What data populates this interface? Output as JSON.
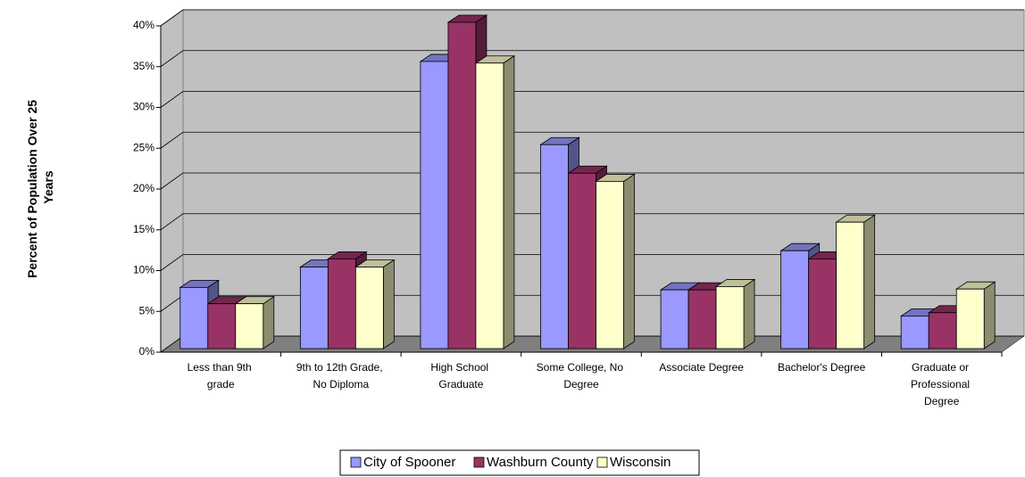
{
  "chart_data": {
    "type": "bar3d",
    "y_label": "Percent of Population Over 25 Years",
    "categories": [
      "Less than 9th grade",
      "9th to 12th Grade, No Diploma",
      "High School Graduate",
      "Some College, No Degree",
      "Associate Degree",
      "Bachelor's Degree",
      "Graduate or Professional Degree"
    ],
    "series": [
      {
        "name": "City of Spooner",
        "color": "#9999ff",
        "values": [
          7.5,
          10,
          35.2,
          25,
          7.2,
          12,
          4
        ]
      },
      {
        "name": "Washburn County",
        "color": "#993366",
        "values": [
          5.5,
          11,
          40,
          21.5,
          7.2,
          11,
          4.4
        ]
      },
      {
        "name": "Wisconsin",
        "color": "#ffffcc",
        "values": [
          5.5,
          10,
          35,
          20.5,
          7.6,
          15.5,
          7.3
        ]
      }
    ],
    "ylim": [
      0,
      40
    ],
    "yticks": [
      {
        "value": 0,
        "label": "0%"
      },
      {
        "value": 5,
        "label": "5%"
      },
      {
        "value": 10,
        "label": "10%"
      },
      {
        "value": 15,
        "label": "15%"
      },
      {
        "value": 20,
        "label": "20%"
      },
      {
        "value": 25,
        "label": "25%"
      },
      {
        "value": 30,
        "label": "30%"
      },
      {
        "value": 35,
        "label": "35%"
      },
      {
        "value": 40,
        "label": "40%"
      }
    ],
    "grid": true,
    "legend": "bottom"
  }
}
